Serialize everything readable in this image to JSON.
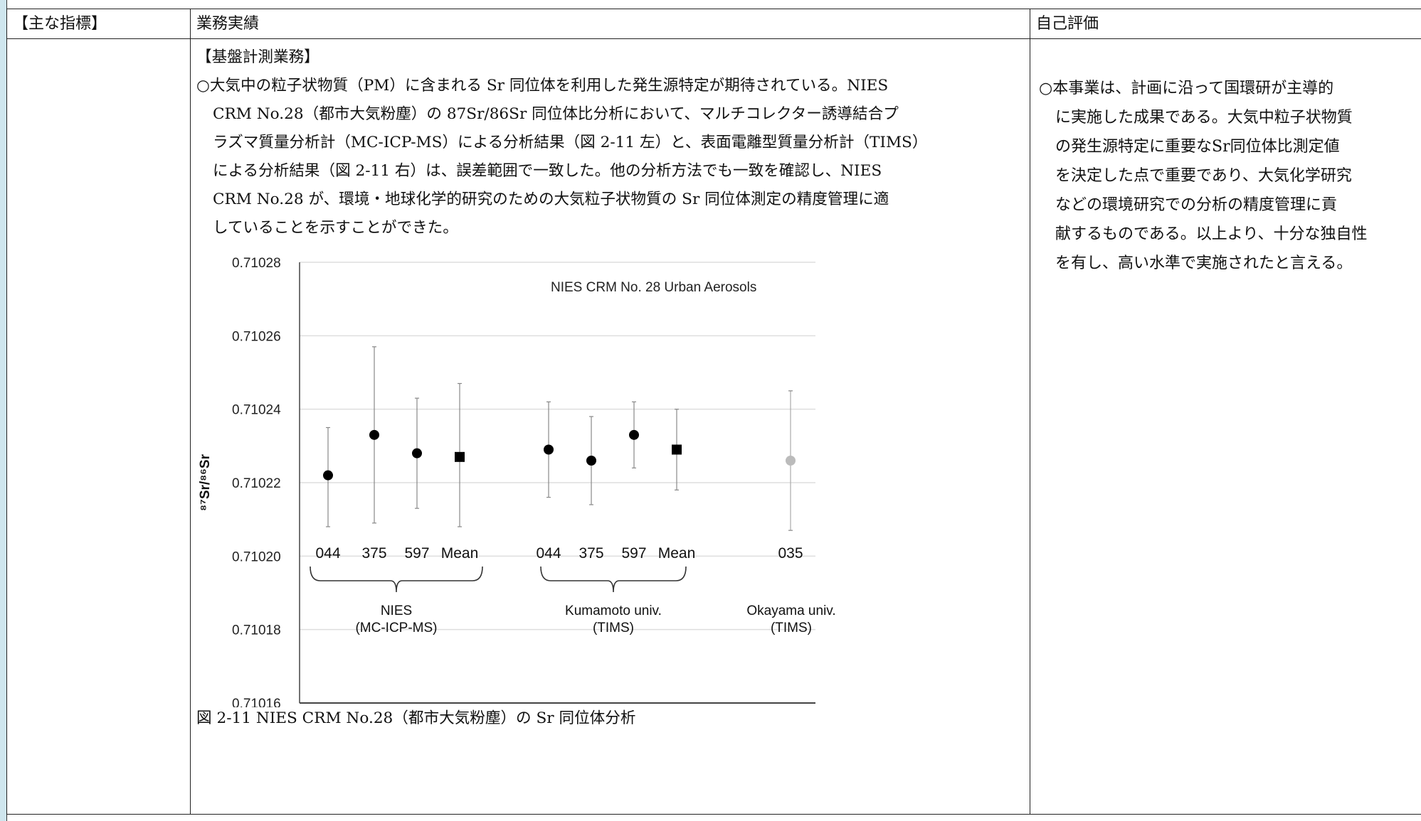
{
  "table": {
    "headers": {
      "indicator": "【主な指標】",
      "results": "業務実績",
      "evaluation": "自己評価"
    }
  },
  "results": {
    "section_heading": "【基盤計測業務】",
    "paragraph_lines": [
      "○大気中の粒子状物質（PM）に含まれる Sr 同位体を利用した発生源特定が期待されている。NIES",
      "CRM No.28（都市大気粉塵）の 87Sr/86Sr 同位体比分析において、マルチコレクター誘導結合プ",
      "ラズマ質量分析計（MC-ICP-MS）による分析結果（図 2-11 左）と、表面電離型質量分析計（TIMS）",
      "による分析結果（図 2-11 右）は、誤差範囲で一致した。他の分析方法でも一致を確認し、NIES",
      "CRM No.28 が、環境・地球化学的研究のための大気粒子状物質の Sr 同位体測定の精度管理に適",
      "していることを示すことができた。"
    ],
    "figure_caption": "図 2-11 NIES CRM No.28（都市大気粉塵）の Sr 同位体分析"
  },
  "evaluation": {
    "lines": [
      "○本事業は、計画に沿って国環研が主導的",
      "に実施した成果である。大気中粒子状物質",
      "の発生源特定に重要なSr同位体比測定値",
      "を決定した点で重要であり、大気化学研究",
      "などの環境研究での分析の精度管理に貢",
      "献するものである。以上より、十分な独自性",
      "を有し、高い水準で実施されたと言える。"
    ]
  },
  "chart_data": {
    "type": "scatter",
    "title": "NIES CRM No. 28 Urban Aerosols",
    "xlabel": "",
    "ylabel": "⁸⁷Sr/⁸⁶Sr",
    "ylim": [
      0.71016,
      0.71028
    ],
    "yticks": [
      "0.71016",
      "0.71018",
      "0.71020",
      "0.71022",
      "0.71024",
      "0.71026",
      "0.71028"
    ],
    "grid": true,
    "points": [
      {
        "label": "044",
        "group": "NIES",
        "y": 0.710222,
        "err_low": 0.710208,
        "err_high": 0.710235,
        "marker": "circle",
        "color": "#000000"
      },
      {
        "label": "375",
        "group": "NIES",
        "y": 0.710233,
        "err_low": 0.710209,
        "err_high": 0.710257,
        "marker": "circle",
        "color": "#000000"
      },
      {
        "label": "597",
        "group": "NIES",
        "y": 0.710228,
        "err_low": 0.710213,
        "err_high": 0.710243,
        "marker": "circle",
        "color": "#000000"
      },
      {
        "label": "Mean",
        "group": "NIES",
        "y": 0.710227,
        "err_low": 0.710208,
        "err_high": 0.710247,
        "marker": "square",
        "color": "#000000"
      },
      {
        "label": "044",
        "group": "Kumamoto",
        "y": 0.710229,
        "err_low": 0.710216,
        "err_high": 0.710242,
        "marker": "circle",
        "color": "#000000"
      },
      {
        "label": "375",
        "group": "Kumamoto",
        "y": 0.710226,
        "err_low": 0.710214,
        "err_high": 0.710238,
        "marker": "circle",
        "color": "#000000"
      },
      {
        "label": "597",
        "group": "Kumamoto",
        "y": 0.710233,
        "err_low": 0.710224,
        "err_high": 0.710242,
        "marker": "circle",
        "color": "#000000"
      },
      {
        "label": "Mean",
        "group": "Kumamoto",
        "y": 0.710229,
        "err_low": 0.710218,
        "err_high": 0.71024,
        "marker": "square",
        "color": "#000000"
      },
      {
        "label": "035",
        "group": "Okayama",
        "y": 0.710226,
        "err_low": 0.710207,
        "err_high": 0.710245,
        "marker": "circle",
        "color": "#bbbbbb"
      }
    ],
    "groups": [
      {
        "key": "NIES",
        "line1": "NIES",
        "line2": "(MC-ICP-MS)",
        "bracket": true
      },
      {
        "key": "Kumamoto",
        "line1": "Kumamoto univ.",
        "line2": "(TIMS)",
        "bracket": true
      },
      {
        "key": "Okayama",
        "line1": "Okayama univ.",
        "line2": "(TIMS)",
        "bracket": false
      }
    ]
  }
}
